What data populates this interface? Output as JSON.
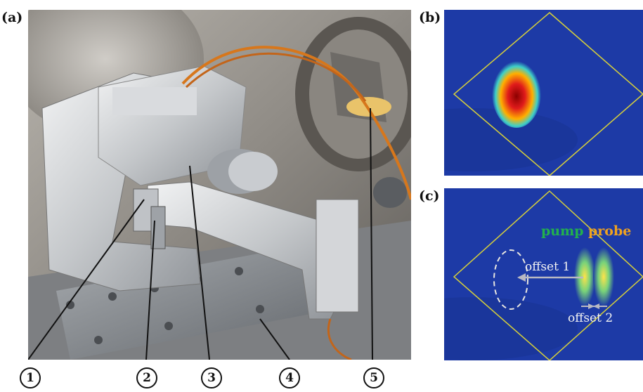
{
  "panel_labels": {
    "a": "(a)",
    "b": "(b)",
    "c": "(c)"
  },
  "callouts": [
    "1",
    "2",
    "3",
    "4",
    "5"
  ],
  "panel_c": {
    "pump_label": "pump",
    "probe_label": "probe",
    "offset1_label": "offset 1",
    "offset2_label": "offset 2"
  },
  "colors": {
    "pump": "#22b14c",
    "probe": "#f0a21e",
    "frame": "#d8d13a",
    "background_blue": "#1d3aa6"
  }
}
